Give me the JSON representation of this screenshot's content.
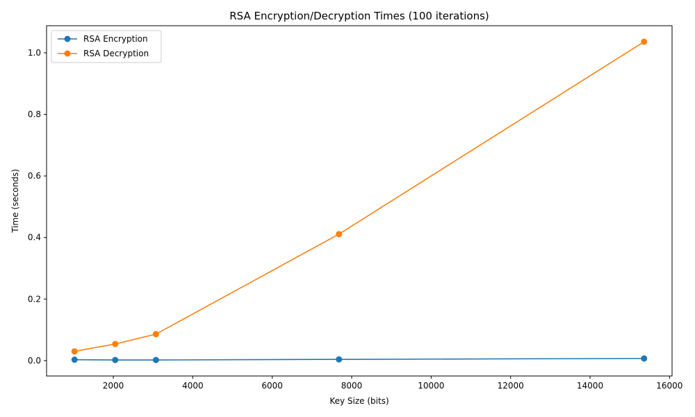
{
  "chart_data": {
    "type": "line",
    "title": "RSA Encryption/Decryption Times (100 iterations)",
    "xlabel": "Key Size (bits)",
    "ylabel": "Time (seconds)",
    "x": [
      1024,
      2048,
      3072,
      7680,
      15360
    ],
    "xlim": [
      320,
      16064
    ],
    "ylim": [
      -0.05,
      1.088
    ],
    "xticks": [
      2000,
      4000,
      6000,
      8000,
      10000,
      12000,
      14000,
      16000
    ],
    "yticks": [
      0.0,
      0.2,
      0.4,
      0.6,
      0.8,
      1.0
    ],
    "ytick_labels": [
      "0.0",
      "0.2",
      "0.4",
      "0.6",
      "0.8",
      "1.0"
    ],
    "legend_position": "top-left",
    "grid": false,
    "series": [
      {
        "name": "RSA Encryption",
        "color": "#1f77b4",
        "values": [
          0.003,
          0.002,
          0.002,
          0.004,
          0.007
        ]
      },
      {
        "name": "RSA Decryption",
        "color": "#ff7f0e",
        "values": [
          0.03,
          0.054,
          0.086,
          0.411,
          1.036
        ]
      }
    ]
  }
}
